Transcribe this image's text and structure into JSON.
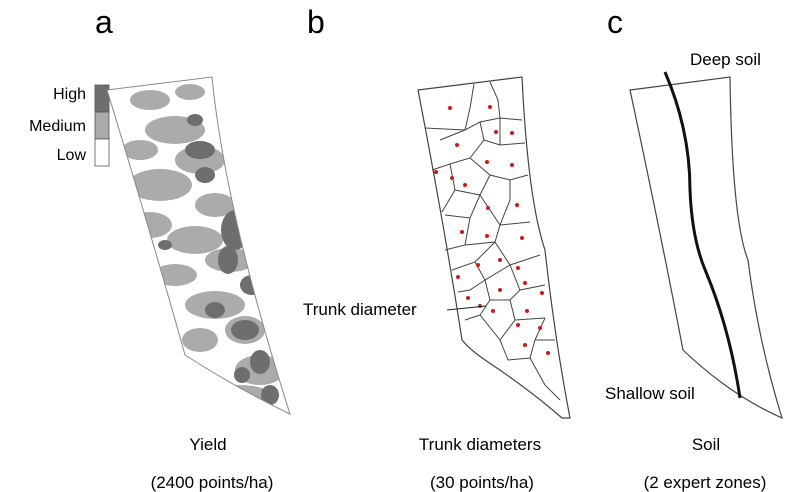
{
  "panels": [
    {
      "letter": "a",
      "caption": "Yield",
      "subcaption": "(2400 points/ha)",
      "legend": [
        {
          "label": "High",
          "color": "#6e6e6e"
        },
        {
          "label": "Medium",
          "color": "#ababab"
        },
        {
          "label": "Low",
          "color": "#ffffff"
        }
      ]
    },
    {
      "letter": "b",
      "caption": "Trunk diameters",
      "subcaption": "(30 points/ha)",
      "annotation": "Trunk diameter",
      "point_color": "#cc1a1a"
    },
    {
      "letter": "c",
      "caption": "Soil",
      "subcaption": "(2 expert zones)",
      "zone_labels": {
        "top": "Deep soil",
        "bottom": "Shallow soil"
      }
    }
  ]
}
